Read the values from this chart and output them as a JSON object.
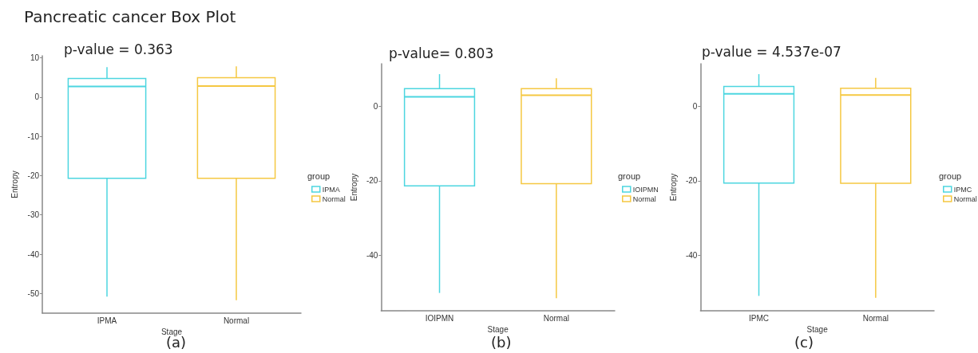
{
  "chart_data": [
    {
      "type": "box",
      "title": "Pancreatic cancer Box Plot",
      "subtitle": "p-value = 0.363",
      "xlabel": "Stage",
      "ylabel": "Entropy",
      "legend_title": "group",
      "categories": [
        "IPMA",
        "Normal"
      ],
      "ylim": [
        -55,
        10.5
      ],
      "yticks": [
        -50,
        -40,
        -30,
        -20,
        -10,
        0,
        10
      ],
      "grid": false,
      "legend": "right",
      "annotations": [
        "(a)"
      ],
      "series": [
        {
          "name": "IPMA",
          "color": "#4dd6e0",
          "boxes": [
            {
              "low": -50.8,
              "q1": -20.7,
              "median": 2.7,
              "q3": 4.7,
              "high": 7.6
            },
            null
          ]
        },
        {
          "name": "Normal",
          "color": "#f5c842",
          "boxes": [
            null,
            {
              "low": -51.7,
              "q1": -20.7,
              "median": 2.8,
              "q3": 4.9,
              "high": 7.8
            }
          ]
        }
      ]
    },
    {
      "type": "box",
      "subtitle": "p-value= 0.803",
      "xlabel": "Stage",
      "ylabel": "Entropy",
      "legend_title": "group",
      "categories": [
        "IOIPMN",
        "Normal"
      ],
      "ylim": [
        -55,
        11.5
      ],
      "yticks": [
        -40,
        -20,
        0
      ],
      "grid": false,
      "legend": "right",
      "annotations": [
        "(b)"
      ],
      "series": [
        {
          "name": "IOIPMN",
          "color": "#4dd6e0",
          "boxes": [
            {
              "low": -50.2,
              "q1": -21.4,
              "median": 2.6,
              "q3": 4.8,
              "high": 8.7
            },
            null
          ]
        },
        {
          "name": "Normal",
          "color": "#f5c842",
          "boxes": [
            null,
            {
              "low": -51.6,
              "q1": -20.8,
              "median": 3.0,
              "q3": 4.8,
              "high": 7.6
            }
          ]
        }
      ]
    },
    {
      "type": "box",
      "subtitle": "p-value = 4.537e-07",
      "xlabel": "Stage",
      "ylabel": "Entropy",
      "legend_title": "group",
      "categories": [
        "IPMC",
        "Normal"
      ],
      "ylim": [
        -55,
        11.5
      ],
      "yticks": [
        -40,
        -20,
        0
      ],
      "grid": false,
      "legend": "right",
      "annotations": [
        "(c)"
      ],
      "series": [
        {
          "name": "IPMC",
          "color": "#4dd6e0",
          "boxes": [
            {
              "low": -51.0,
              "q1": -20.6,
              "median": 3.4,
              "q3": 5.4,
              "high": 8.7
            },
            null
          ]
        },
        {
          "name": "Normal",
          "color": "#f5c842",
          "boxes": [
            null,
            {
              "low": -51.5,
              "q1": -20.7,
              "median": 3.1,
              "q3": 4.9,
              "high": 7.7
            }
          ]
        }
      ]
    }
  ]
}
